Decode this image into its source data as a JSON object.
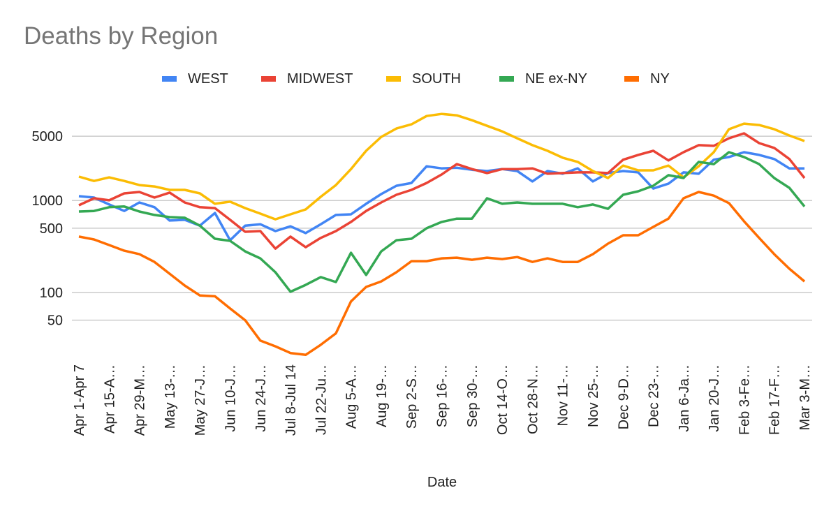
{
  "chart_data": {
    "type": "line",
    "title": "Deaths by Region",
    "xlabel": "Date",
    "ylabel": "",
    "yscale": "log",
    "ylim": [
      15,
      12000
    ],
    "yticks": [
      50,
      100,
      500,
      1000,
      5000
    ],
    "ytick_labels": [
      "50",
      "100",
      "500",
      "1000",
      "5000"
    ],
    "grid": true,
    "legend_position": "top",
    "num_points": 49,
    "xtick_every": 2,
    "xtick_labels": [
      "Apr 1-Apr 7",
      "Apr 15-A…",
      "Apr 29-M…",
      "May 13-…",
      "May 27-J…",
      "Jun 10-J…",
      "Jun 24-J…",
      "Jul 8-Jul 14",
      "Jul 22-Ju…",
      "Aug 5-A…",
      "Aug 19-…",
      "Sep 2-S…",
      "Sep 16-…",
      "Sep 30-…",
      "Oct 14-O…",
      "Oct 28-N…",
      "Nov 11-…",
      "Nov 25-…",
      "Dec 9-D…",
      "Dec 23-…",
      "Jan 6-Ja…",
      "Jan 20-J…",
      "Feb 3-Fe…",
      "Feb 17-F…",
      "Mar 3-M…"
    ],
    "series": [
      {
        "name": "WEST",
        "color": "#4285f4",
        "values": [
          1114,
          1077,
          905,
          769,
          953,
          846,
          606,
          616,
          533,
          731,
          370,
          533,
          552,
          465,
          524,
          442,
          552,
          697,
          707,
          921,
          1175,
          1446,
          1551,
          2354,
          2232,
          2271,
          2157,
          2090,
          2194,
          2090,
          1612,
          2090,
          1953,
          2232,
          1612,
          1987,
          2090,
          2022,
          1349,
          1524,
          2022,
          1953,
          2773,
          2968,
          3348,
          3127,
          2822,
          2232,
          2232
        ]
      },
      {
        "name": "MIDWEST",
        "color": "#ea4335",
        "values": [
          888,
          1058,
          1006,
          1196,
          1237,
          1077,
          1218,
          953,
          846,
          827,
          616,
          457,
          465,
          300,
          405,
          311,
          392,
          465,
          585,
          769,
          953,
          1155,
          1304,
          1551,
          1919,
          2483,
          2194,
          1987,
          2194,
          2194,
          2232,
          1953,
          1987,
          2022,
          2022,
          1987,
          2773,
          3127,
          3467,
          2725,
          3348,
          3995,
          3929,
          4746,
          5366,
          4204,
          3727,
          2822,
          1755
        ]
      },
      {
        "name": "SOUTH",
        "color": "#fbbc04",
        "values": [
          1817,
          1632,
          1784,
          1632,
          1471,
          1420,
          1304,
          1304,
          1196,
          921,
          970,
          827,
          720,
          625,
          707,
          800,
          1097,
          1471,
          2194,
          3467,
          4910,
          6054,
          6725,
          8284,
          8728,
          8425,
          7461,
          6489,
          5641,
          4746,
          3995,
          3467,
          2918,
          2627,
          2090,
          1755,
          2395,
          2128,
          2128,
          2395,
          1784,
          2354,
          3348,
          5951,
          6843,
          6610,
          5951,
          5083,
          4431
        ]
      },
      {
        "name": "NE ex-NY",
        "color": "#34a853",
        "values": [
          759,
          769,
          846,
          860,
          759,
          697,
          660,
          649,
          533,
          384,
          364,
          280,
          235,
          166,
          102,
          121,
          147,
          130,
          270,
          155,
          280,
          370,
          384,
          500,
          585,
          635,
          635,
          1058,
          921,
          953,
          921,
          921,
          921,
          846,
          905,
          813,
          1155,
          1260,
          1446,
          1887,
          1755,
          2627,
          2483,
          3348,
          2968,
          2483,
          1755,
          1371,
          860
        ]
      },
      {
        "name": "NY",
        "color": "#ff6d01",
        "values": [
          405,
          377,
          328,
          285,
          261,
          215,
          160,
          119,
          93,
          91,
          67,
          50,
          30,
          26,
          22,
          21,
          27,
          36,
          80,
          115,
          132,
          166,
          219,
          219,
          235,
          239,
          227,
          239,
          231,
          243,
          215,
          235,
          215,
          215,
          261,
          340,
          419,
          419,
          517,
          635,
          1058,
          1237,
          1131,
          937,
          595,
          392,
          261,
          181,
          132
        ]
      }
    ]
  },
  "colors": {
    "title": "#757575",
    "gridline": "#cccccc",
    "text": "#222222"
  }
}
